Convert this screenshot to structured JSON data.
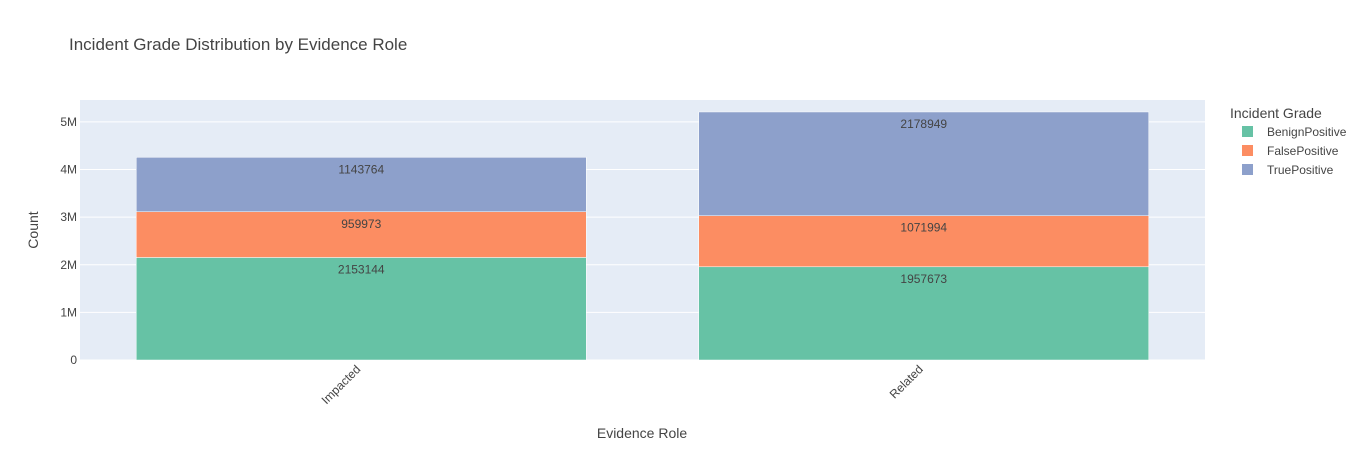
{
  "chart_data": {
    "type": "bar",
    "barmode": "stack",
    "title": "Incident Grade Distribution by Evidence Role",
    "xlabel": "Evidence Role",
    "ylabel": "Count",
    "categories": [
      "Impacted",
      "Related"
    ],
    "ylim": [
      0,
      5460000
    ],
    "yticks": [
      {
        "value": 0,
        "label": "0"
      },
      {
        "value": 1000000,
        "label": "1M"
      },
      {
        "value": 2000000,
        "label": "2M"
      },
      {
        "value": 3000000,
        "label": "3M"
      },
      {
        "value": 4000000,
        "label": "4M"
      },
      {
        "value": 5000000,
        "label": "5M"
      }
    ],
    "grid": true,
    "legend": {
      "title": "Incident Grade",
      "placement": "right"
    },
    "series": [
      {
        "name": "BenignPositive",
        "color": "#66c2a5",
        "values": [
          2153144,
          1957673
        ],
        "labels": [
          "2153144",
          "1957673"
        ]
      },
      {
        "name": "FalsePositive",
        "color": "#fc8d62",
        "values": [
          959973,
          1071994
        ],
        "labels": [
          "959973",
          "1071994"
        ]
      },
      {
        "name": "TruePositive",
        "color": "#8da0cb",
        "values": [
          1143764,
          2178949
        ],
        "labels": [
          "1143764",
          "2178949"
        ]
      }
    ],
    "plot_background": "#e5ecf6",
    "grid_color": "#ffffff"
  }
}
